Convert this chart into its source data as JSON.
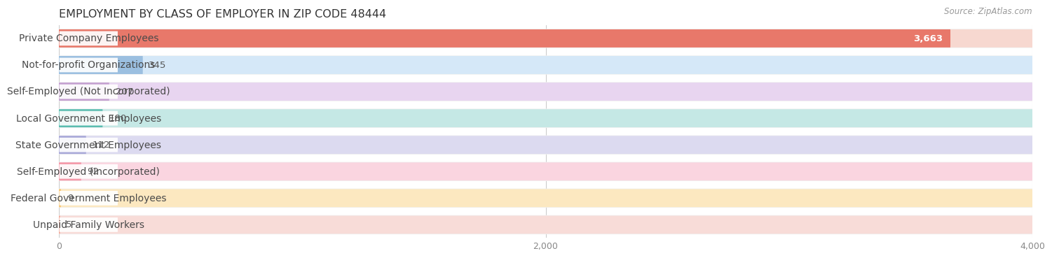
{
  "title": "EMPLOYMENT BY CLASS OF EMPLOYER IN ZIP CODE 48444",
  "source": "Source: ZipAtlas.com",
  "categories": [
    "Private Company Employees",
    "Not-for-profit Organizations",
    "Self-Employed (Not Incorporated)",
    "Local Government Employees",
    "State Government Employees",
    "Self-Employed (Incorporated)",
    "Federal Government Employees",
    "Unpaid Family Workers"
  ],
  "values": [
    3663,
    345,
    207,
    180,
    112,
    92,
    9,
    5
  ],
  "bar_colors": [
    "#e8786a",
    "#9bbfe0",
    "#c4a0d0",
    "#5cbdb0",
    "#a8a8d8",
    "#f598a8",
    "#f8c87a",
    "#f0a898"
  ],
  "bar_bg_colors": [
    "#f7d8d0",
    "#d5e8f8",
    "#e8d5f0",
    "#c5e8e5",
    "#dcdaf0",
    "#fad5e0",
    "#fce8c0",
    "#f8dcd8"
  ],
  "xlim": [
    0,
    4000
  ],
  "xticks": [
    0,
    2000,
    4000
  ],
  "background_color": "#ffffff",
  "row_bg_color": "#f0f0f0",
  "title_fontsize": 11.5,
  "source_fontsize": 8.5,
  "label_fontsize": 10,
  "value_fontsize": 9.5
}
